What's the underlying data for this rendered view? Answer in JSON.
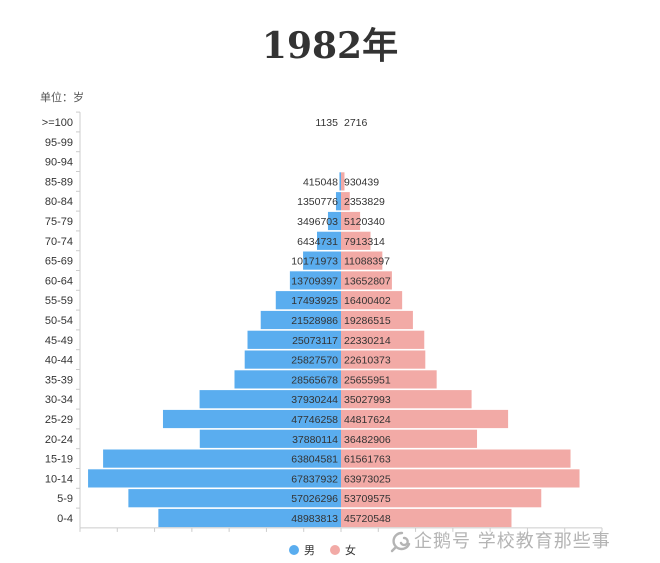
{
  "colors": {
    "male": "#5aadef",
    "female": "#f2aaa6",
    "axis": "#cccccc",
    "text": "#333333",
    "watermark": "#b4b4b4"
  },
  "watermark": {
    "text": "企鹅号 学校教育那些事",
    "icon": "qie-logo-icon"
  },
  "chart_data": {
    "type": "bar",
    "orientation": "horizontal",
    "title": "1982年",
    "ylabel": "单位：岁",
    "xlabel": "",
    "categories": [
      ">=100",
      "95-99",
      "90-94",
      "85-89",
      "80-84",
      "75-79",
      "70-74",
      "65-69",
      "60-64",
      "55-59",
      "50-54",
      "45-49",
      "40-44",
      "35-39",
      "30-34",
      "25-29",
      "20-24",
      "15-19",
      "10-14",
      "5-9",
      "0-4"
    ],
    "series": [
      {
        "name": "男",
        "values": [
          1135,
          null,
          null,
          415048,
          1350776,
          3496703,
          6434731,
          10171973,
          13709397,
          17493925,
          21528986,
          25073117,
          25827570,
          28565678,
          37930244,
          47746258,
          37880114,
          63804581,
          67837932,
          57026296,
          48983813
        ]
      },
      {
        "name": "女",
        "values": [
          2716,
          null,
          null,
          930439,
          2353829,
          5120340,
          7913314,
          11088397,
          13652807,
          16400402,
          19286515,
          22330214,
          22610373,
          25655951,
          35027993,
          44817624,
          36482906,
          61561763,
          63973025,
          53709575,
          45720548
        ]
      }
    ],
    "xlim": [
      0,
      70000000
    ],
    "grid": false,
    "legend": "bottom-center"
  }
}
